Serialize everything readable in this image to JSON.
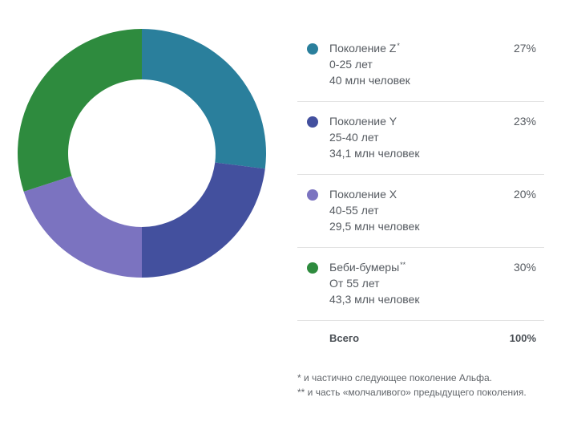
{
  "chart_data": {
    "type": "pie",
    "categories": [
      "Поколение Z",
      "Поколение Y",
      "Поколение X",
      "Беби-бумеры"
    ],
    "values": [
      27,
      23,
      20,
      30
    ],
    "colors": [
      "#2a7f9c",
      "#43509e",
      "#7b73c0",
      "#2e8b3e"
    ],
    "style": "donut"
  },
  "legend": {
    "rows": [
      {
        "name": "Поколение Z",
        "mark": "*",
        "age": "0-25 лет",
        "count": "40 млн человек",
        "percent": "27%",
        "color": "#2a7f9c"
      },
      {
        "name": "Поколение Y",
        "mark": "",
        "age": "25-40 лет",
        "count": "34,1 млн человек",
        "percent": "23%",
        "color": "#43509e"
      },
      {
        "name": "Поколение X",
        "mark": "",
        "age": "40-55 лет",
        "count": "29,5 млн человек",
        "percent": "20%",
        "color": "#7b73c0"
      },
      {
        "name": "Беби-бумеры",
        "mark": "**",
        "age": "От 55 лет",
        "count": "43,3 млн человек",
        "percent": "30%",
        "color": "#2e8b3e"
      }
    ],
    "total_label": "Всего",
    "total_value": "100%"
  },
  "footnotes": {
    "note1": "* и частично следующее поколение Альфа.",
    "note2": "** и часть «молчаливого» предыдущего поколения."
  }
}
